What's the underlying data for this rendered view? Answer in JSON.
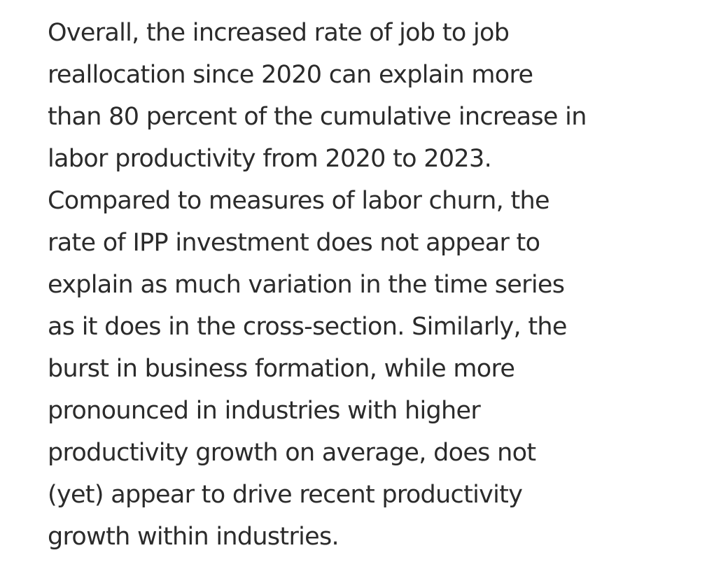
{
  "article": {
    "paragraph_lines": [
      "Overall, the increased rate of job to job",
      "reallocation since 2020 can explain more",
      "than 80 percent of the cumulative increase in",
      "labor productivity from 2020 to 2023.",
      "Compared to measures of labor churn, the",
      "rate of IPP investment does not appear to",
      "explain as much variation in the time series",
      "as it does in the cross-section. Similarly, the",
      "burst in business formation, while more",
      "pronounced in industries with higher",
      "productivity growth on average, does not",
      "(yet) appear to drive recent productivity",
      "growth within industries."
    ]
  },
  "colors": {
    "text": "#2b2b2b",
    "background": "#ffffff"
  }
}
